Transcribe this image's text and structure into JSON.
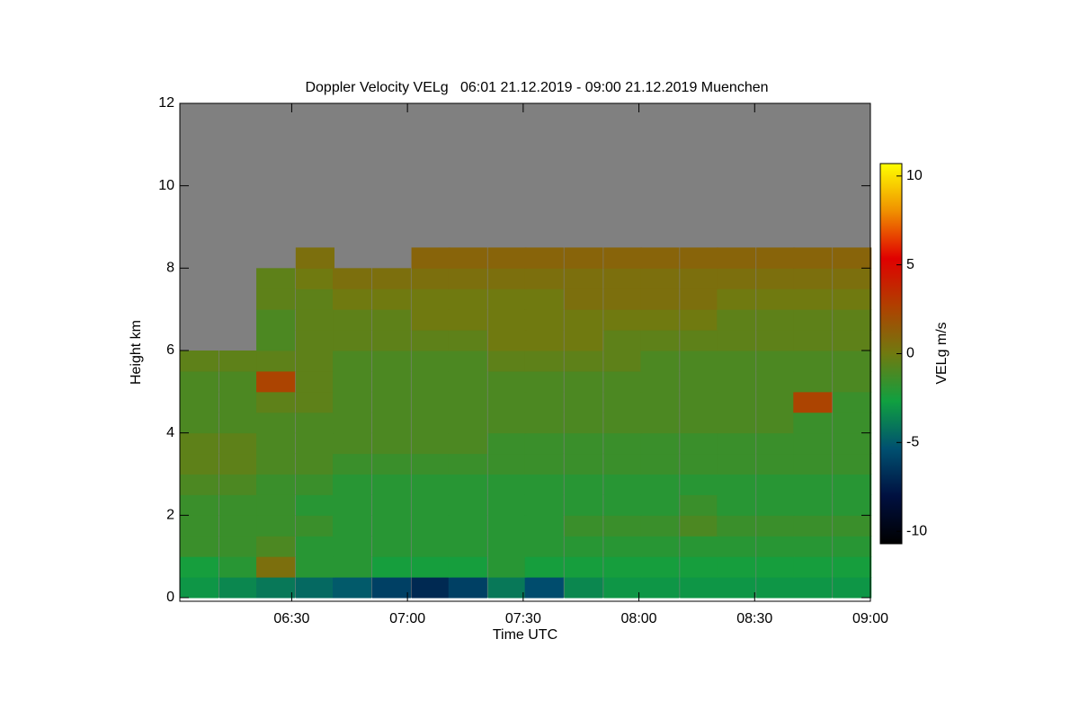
{
  "chart_data": {
    "type": "heatmap",
    "title": "Doppler Velocity VELg   06:01 21.12.2019 - 09:00 21.12.2019 Muenchen",
    "xlabel": "Time UTC",
    "ylabel": "Height km",
    "colorbar_label": "VELg m/s",
    "xlim": [
      6.0167,
      9.0
    ],
    "xticks": [
      {
        "value": 6.5,
        "label": "06:30"
      },
      {
        "value": 7.0,
        "label": "07:00"
      },
      {
        "value": 7.5,
        "label": "07:30"
      },
      {
        "value": 8.0,
        "label": "08:00"
      },
      {
        "value": 8.5,
        "label": "08:30"
      },
      {
        "value": 9.0,
        "label": "09:00"
      }
    ],
    "ylim": [
      0,
      12
    ],
    "yticks": [
      0,
      2,
      4,
      6,
      8,
      10,
      12
    ],
    "zlim": [
      -10.7,
      10.7
    ],
    "zticks": [
      -10,
      -5,
      0,
      5,
      10
    ],
    "colormap": [
      "#000000",
      "#001040",
      "#005070",
      "#10a040",
      "#707a10",
      "#b04000",
      "#e00000",
      "#f09000",
      "#ffff00"
    ],
    "no_data_color": "#808080",
    "x": [
      6.1,
      6.27,
      6.43,
      6.6,
      6.76,
      6.93,
      7.1,
      7.26,
      7.43,
      7.59,
      7.76,
      7.93,
      8.09,
      8.26,
      8.42,
      8.59,
      8.75,
      8.92
    ],
    "y": [
      0.25,
      0.75,
      1.25,
      1.75,
      2.25,
      2.75,
      3.25,
      3.75,
      4.25,
      4.75,
      5.25,
      5.75,
      6.25,
      6.75,
      7.25,
      7.75,
      8.25
    ],
    "values": [
      [
        -3,
        -3.5,
        -4,
        -4.5,
        -5,
        -6,
        -7,
        -6,
        -4,
        -5.5,
        -3.5,
        -3,
        -3,
        -3,
        -3,
        -3,
        -3,
        -3
      ],
      [
        -2.5,
        -2,
        0.5,
        -2,
        -2,
        -2.5,
        -2.5,
        -2.5,
        -2,
        -2.5,
        -2.5,
        -2.5,
        -2.5,
        -2.5,
        -2.5,
        -2.5,
        -2.5,
        -2.5
      ],
      [
        -1.5,
        -1.5,
        -1,
        -2,
        -2,
        -2,
        -2,
        -2,
        -2,
        -2,
        -2,
        -2,
        -2,
        -2,
        -2,
        -2,
        -2,
        -2
      ],
      [
        -1.5,
        -1.5,
        -1.5,
        -1.5,
        -2,
        -2,
        -2,
        -2,
        -2,
        -2,
        -1.5,
        -1.5,
        -1.5,
        -1,
        -1.5,
        -1.5,
        -1.5,
        -1.5
      ],
      [
        -1.5,
        -1.5,
        -1.5,
        -2,
        -2,
        -2,
        -2,
        -2,
        -2,
        -2,
        -2,
        -2,
        -2,
        -1.5,
        -2,
        -2,
        -2,
        -2
      ],
      [
        -1,
        -1,
        -1.5,
        -1.5,
        -2,
        -2,
        -2,
        -2,
        -2,
        -2,
        -2,
        -2,
        -2,
        -2,
        -2,
        -2,
        -2,
        -2
      ],
      [
        -0.5,
        -0.5,
        -1,
        -1,
        -1.5,
        -1.5,
        -1.5,
        -1.5,
        -1.5,
        -1.5,
        -1.5,
        -1.5,
        -1.5,
        -1.5,
        -1.5,
        -1.5,
        -1.5,
        -1.5
      ],
      [
        -0.5,
        -0.5,
        -1,
        -1,
        -1,
        -1,
        -1,
        -1,
        -1.5,
        -1.5,
        -1.5,
        -1.5,
        -1.5,
        -1.5,
        -1.5,
        -1.5,
        -1.5,
        -1.5
      ],
      [
        -1,
        -1,
        -1,
        -1,
        -1,
        -1,
        -1,
        -1,
        -1,
        -1,
        -1,
        -1,
        -1,
        -1,
        -1,
        -1,
        -1.5,
        -1.5
      ],
      [
        -1,
        -1,
        -0.5,
        -0.5,
        -1,
        -1,
        -1,
        -1,
        -1,
        -1,
        -1,
        -1,
        -1,
        -1,
        -1,
        -1,
        2.5,
        -1.5
      ],
      [
        -1,
        -1,
        2.5,
        -0.5,
        -1,
        -1,
        -1,
        -1,
        -1,
        -1,
        -1,
        -1,
        -1,
        -1,
        -1,
        -1,
        -1,
        -1
      ],
      [
        -0.5,
        -0.5,
        -0.5,
        -0.5,
        -1,
        -1,
        -1,
        -1,
        -0.5,
        -0.5,
        -0.5,
        -0.5,
        -1,
        -1,
        -1,
        -1,
        -1,
        -1
      ],
      [
        null,
        null,
        -1,
        -0.5,
        -0.5,
        -0.5,
        -0.5,
        -0.5,
        0,
        0,
        0,
        -0.5,
        -0.5,
        -0.5,
        -0.5,
        -0.5,
        -0.5,
        -0.5
      ],
      [
        null,
        null,
        -1,
        -0.5,
        -0.5,
        -0.5,
        0,
        0,
        0,
        0,
        0,
        0,
        0,
        0,
        -0.5,
        -0.5,
        -0.5,
        -0.5
      ],
      [
        null,
        null,
        -0.5,
        -0.5,
        0,
        0,
        0,
        0,
        0,
        0,
        0.5,
        0.5,
        0.5,
        0.5,
        0,
        0,
        0,
        0
      ],
      [
        null,
        null,
        -0.5,
        0,
        0.5,
        0.5,
        0.5,
        0.5,
        0.5,
        0.5,
        0.5,
        0.5,
        0.5,
        0.5,
        0.5,
        0.5,
        0.5,
        0.5
      ],
      [
        null,
        null,
        null,
        0.5,
        null,
        null,
        1,
        1,
        1,
        1,
        1,
        1,
        1,
        1,
        1,
        1,
        1,
        1
      ]
    ]
  }
}
